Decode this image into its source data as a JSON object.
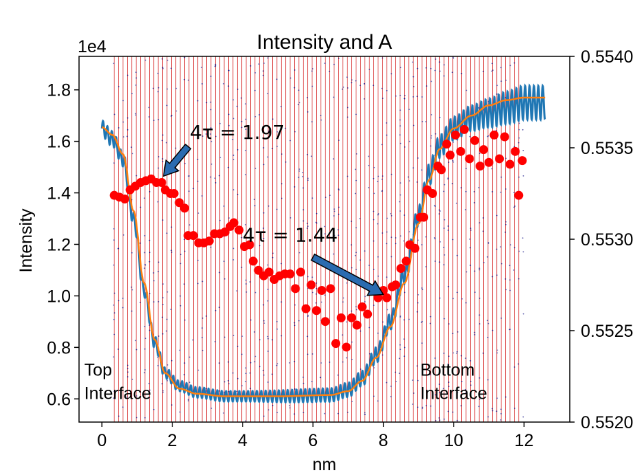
{
  "chart_data": {
    "type": "line",
    "title": "Intensity and A",
    "xlabel": "nm",
    "ylabel": "Intensity",
    "y_offset_text": "1e4",
    "xlim": [
      -0.65,
      13.3
    ],
    "ylim": [
      5100,
      19300
    ],
    "y2lim": [
      0.552,
      0.554
    ],
    "x_ticks": [
      0,
      2,
      4,
      6,
      8,
      10,
      12
    ],
    "x_tick_labels": [
      "0",
      "2",
      "4",
      "6",
      "8",
      "10",
      "12"
    ],
    "y_ticks": [
      6000,
      8000,
      10000,
      12000,
      14000,
      16000,
      18000
    ],
    "y_tick_labels": [
      "0.6",
      "0.8",
      "1.0",
      "1.2",
      "1.4",
      "1.6",
      "1.8"
    ],
    "y2_ticks": [
      0.552,
      0.5525,
      0.553,
      0.5535,
      0.554
    ],
    "y2_tick_labels": [
      "0.5520",
      "0.5525",
      "0.5530",
      "0.5535",
      "0.5540"
    ],
    "grid": false,
    "vertical_lines": {
      "start": 0.35,
      "end": 11.95,
      "step": 0.125,
      "color": "#d62728"
    },
    "oscillating_series": {
      "color": "#1f77b4",
      "baseline_knots": [
        [
          0,
          16500
        ],
        [
          0.3,
          16100
        ],
        [
          0.6,
          15300
        ],
        [
          0.9,
          13000
        ],
        [
          1.2,
          10200
        ],
        [
          1.5,
          8200
        ],
        [
          1.8,
          7000
        ],
        [
          2.2,
          6500
        ],
        [
          2.7,
          6250
        ],
        [
          3.5,
          6100
        ],
        [
          5,
          6100
        ],
        [
          6.5,
          6150
        ],
        [
          7,
          6350
        ],
        [
          7.4,
          6800
        ],
        [
          7.8,
          7700
        ],
        [
          8.2,
          9000
        ],
        [
          8.6,
          10800
        ],
        [
          9,
          13100
        ],
        [
          9.3,
          14700
        ],
        [
          9.6,
          15800
        ],
        [
          10,
          16500
        ],
        [
          10.5,
          16900
        ],
        [
          11,
          17100
        ],
        [
          11.5,
          17300
        ],
        [
          12,
          17500
        ],
        [
          12.6,
          17500
        ]
      ],
      "oscillation_period": 0.125,
      "amplitude_knots": [
        [
          0,
          300
        ],
        [
          1,
          250
        ],
        [
          2,
          200
        ],
        [
          4,
          200
        ],
        [
          6,
          250
        ],
        [
          8,
          300
        ],
        [
          10,
          450
        ],
        [
          12,
          650
        ],
        [
          12.6,
          650
        ]
      ]
    },
    "fit_series": {
      "color": "#ff7f0e",
      "knots": [
        [
          0,
          16550
        ],
        [
          0.3,
          16250
        ],
        [
          0.6,
          15500
        ],
        [
          0.9,
          13300
        ],
        [
          1.2,
          10500
        ],
        [
          1.5,
          8300
        ],
        [
          1.8,
          7000
        ],
        [
          2.2,
          6400
        ],
        [
          2.7,
          6200
        ],
        [
          3.5,
          6100
        ],
        [
          5,
          6100
        ],
        [
          6.5,
          6150
        ],
        [
          7,
          6300
        ],
        [
          7.4,
          6700
        ],
        [
          7.8,
          7600
        ],
        [
          8.2,
          8800
        ],
        [
          8.6,
          10500
        ],
        [
          9,
          12800
        ],
        [
          9.3,
          14500
        ],
        [
          9.6,
          15700
        ],
        [
          10,
          16500
        ],
        [
          10.5,
          17000
        ],
        [
          11,
          17400
        ],
        [
          11.5,
          17600
        ],
        [
          12,
          17700
        ],
        [
          12.6,
          17700
        ]
      ]
    },
    "marker_series": {
      "color": "#ff0000",
      "axis": "right",
      "points": [
        [
          0.35,
          0.55324
        ],
        [
          0.5,
          0.55323
        ],
        [
          0.65,
          0.55322
        ],
        [
          0.8,
          0.55327
        ],
        [
          0.95,
          0.55329
        ],
        [
          1.1,
          0.55331
        ],
        [
          1.25,
          0.55332
        ],
        [
          1.4,
          0.55333
        ],
        [
          1.55,
          0.55331
        ],
        [
          1.7,
          0.55331
        ],
        [
          1.8,
          0.55327
        ],
        [
          1.95,
          0.55325
        ],
        [
          2.05,
          0.55325
        ],
        [
          2.2,
          0.5532
        ],
        [
          2.35,
          0.55317
        ],
        [
          2.45,
          0.55302
        ],
        [
          2.6,
          0.55302
        ],
        [
          2.75,
          0.55298
        ],
        [
          2.9,
          0.55298
        ],
        [
          3.05,
          0.55299
        ],
        [
          3.2,
          0.55303
        ],
        [
          3.35,
          0.55303
        ],
        [
          3.5,
          0.55304
        ],
        [
          3.65,
          0.55307
        ],
        [
          3.75,
          0.55309
        ],
        [
          3.9,
          0.55305
        ],
        [
          4.05,
          0.55296
        ],
        [
          4.2,
          0.55297
        ],
        [
          4.3,
          0.55288
        ],
        [
          4.45,
          0.55283
        ],
        [
          4.6,
          0.5528
        ],
        [
          4.75,
          0.55282
        ],
        [
          4.9,
          0.55278
        ],
        [
          5.05,
          0.5528
        ],
        [
          5.2,
          0.55281
        ],
        [
          5.35,
          0.55281
        ],
        [
          5.5,
          0.55273
        ],
        [
          5.65,
          0.55282
        ],
        [
          5.8,
          0.55262
        ],
        [
          5.95,
          0.55275
        ],
        [
          6.1,
          0.55261
        ],
        [
          6.25,
          0.55272
        ],
        [
          6.35,
          0.55255
        ],
        [
          6.5,
          0.55273
        ],
        [
          6.65,
          0.55243
        ],
        [
          6.8,
          0.55257
        ],
        [
          6.95,
          0.55241
        ],
        [
          7.1,
          0.55257
        ],
        [
          7.25,
          0.55253
        ],
        [
          7.4,
          0.55263
        ],
        [
          7.55,
          0.55259
        ],
        [
          7.7,
          0.55272
        ],
        [
          7.85,
          0.55268
        ],
        [
          8.0,
          0.55272
        ],
        [
          8.1,
          0.55268
        ],
        [
          8.25,
          0.55274
        ],
        [
          8.35,
          0.55275
        ],
        [
          8.5,
          0.55284
        ],
        [
          8.65,
          0.55288
        ],
        [
          8.75,
          0.55297
        ],
        [
          8.9,
          0.55295
        ],
        [
          9.05,
          0.55312
        ],
        [
          9.15,
          0.55312
        ],
        [
          9.25,
          0.55327
        ],
        [
          9.4,
          0.55325
        ],
        [
          9.55,
          0.5534
        ],
        [
          9.65,
          0.55338
        ],
        [
          9.8,
          0.55352
        ],
        [
          9.9,
          0.55346
        ],
        [
          10.05,
          0.55357
        ],
        [
          10.2,
          0.55348
        ],
        [
          10.3,
          0.5536
        ],
        [
          10.45,
          0.55344
        ],
        [
          10.6,
          0.55354
        ],
        [
          10.75,
          0.5534
        ],
        [
          10.85,
          0.55349
        ],
        [
          11.0,
          0.55342
        ],
        [
          11.15,
          0.55357
        ],
        [
          11.3,
          0.55344
        ],
        [
          11.45,
          0.55356
        ],
        [
          11.6,
          0.55341
        ],
        [
          11.75,
          0.55348
        ],
        [
          11.85,
          0.55324
        ],
        [
          11.95,
          0.55343
        ]
      ]
    },
    "noise_points": {
      "count": 900,
      "color": "#1a1a8a"
    },
    "annotations": [
      {
        "text": "4τ = 1.97",
        "text_x": 2.5,
        "text_y": 16100,
        "arrow_from_x": 2.45,
        "arrow_from_y": 15800,
        "arrow_to_x": 1.75,
        "arrow_to_y": 14650
      },
      {
        "text": "4τ = 1.44",
        "text_x": 4.0,
        "text_y": 12100,
        "arrow_from_x": 6.0,
        "arrow_from_y": 11500,
        "arrow_to_x": 8.0,
        "arrow_to_y": 10050
      }
    ],
    "side_notes": [
      {
        "lines": [
          "Top",
          "Interface"
        ],
        "x": -0.5,
        "y": 6900
      },
      {
        "lines": [
          "Bottom",
          "Interface"
        ],
        "x": 9.05,
        "y": 6900
      }
    ]
  }
}
